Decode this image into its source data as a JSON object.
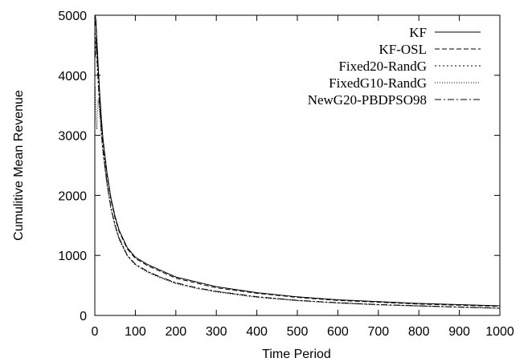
{
  "chart_data": {
    "type": "line",
    "title": "",
    "xlabel": "Time Period",
    "ylabel": "Cumulitive Mean Revenue",
    "xlim": [
      0,
      1000
    ],
    "ylim": [
      0,
      5000
    ],
    "x_ticks": [
      0,
      100,
      200,
      300,
      400,
      500,
      600,
      700,
      800,
      900,
      1000
    ],
    "y_ticks": [
      0,
      1000,
      2000,
      3000,
      4000,
      5000
    ],
    "x_tick_labels": [
      "0",
      "100",
      "200",
      "300",
      "400",
      "500",
      "600",
      "700",
      "800",
      "900",
      "1000"
    ],
    "y_tick_labels": [
      "0",
      "1000",
      "2000",
      "3000",
      "4000",
      "5000"
    ],
    "grid": false,
    "legend_position": "top-right",
    "series": [
      {
        "name": "KF",
        "dash": "solid",
        "x": [
          1,
          3,
          5,
          8,
          12,
          16,
          20,
          30,
          40,
          50,
          60,
          80,
          100,
          130,
          160,
          200,
          250,
          300,
          400,
          500,
          600,
          700,
          800,
          900,
          1000
        ],
        "y": [
          5000,
          4900,
          4600,
          4200,
          3700,
          3300,
          2950,
          2380,
          1950,
          1650,
          1420,
          1130,
          970,
          850,
          760,
          640,
          560,
          480,
          380,
          310,
          260,
          230,
          200,
          180,
          160
        ]
      },
      {
        "name": "KF-OSL",
        "dash": "6,3",
        "x": [
          1,
          3,
          5,
          8,
          12,
          16,
          20,
          30,
          40,
          50,
          60,
          80,
          100,
          130,
          160,
          200,
          250,
          300,
          400,
          500,
          600,
          700,
          800,
          900,
          1000
        ],
        "y": [
          4900,
          4800,
          4550,
          4150,
          3650,
          3250,
          2900,
          2340,
          1920,
          1620,
          1400,
          1110,
          950,
          830,
          740,
          620,
          540,
          460,
          370,
          300,
          250,
          220,
          190,
          170,
          150
        ]
      },
      {
        "name": "Fixed20-RandG",
        "dash": "2,3",
        "x": [
          1,
          3,
          5,
          8,
          12,
          16,
          20,
          30,
          40,
          50,
          60,
          80,
          100,
          130,
          160,
          200,
          250,
          300,
          400,
          500,
          600,
          700,
          800,
          900,
          1000
        ],
        "y": [
          4700,
          4500,
          4250,
          3900,
          3450,
          3050,
          2750,
          2200,
          1780,
          1500,
          1280,
          1000,
          850,
          730,
          640,
          540,
          460,
          400,
          310,
          250,
          210,
          180,
          160,
          140,
          120
        ]
      },
      {
        "name": "FixedG10-RandG",
        "dash": "1,2",
        "x": [
          1,
          3,
          5,
          8,
          12,
          16,
          20,
          30,
          40,
          50,
          60,
          80,
          100,
          130,
          160,
          200,
          250,
          300,
          400,
          500,
          600,
          700,
          800,
          900,
          1000
        ],
        "y": [
          3800,
          3300,
          3100,
          3600,
          3400,
          3000,
          2700,
          2170,
          1760,
          1480,
          1260,
          990,
          840,
          720,
          630,
          530,
          450,
          390,
          300,
          245,
          205,
          175,
          155,
          135,
          118
        ]
      },
      {
        "name": "NewG20-PBDPSO98",
        "dash": "8,3,2,3",
        "x": [
          1,
          3,
          5,
          8,
          12,
          16,
          20,
          30,
          40,
          50,
          60,
          80,
          100,
          130,
          160,
          200,
          250,
          300,
          400,
          500,
          600,
          700,
          800,
          900,
          1000
        ],
        "y": [
          4300,
          4600,
          4350,
          3950,
          3500,
          3080,
          2770,
          2210,
          1790,
          1510,
          1290,
          1005,
          855,
          735,
          645,
          545,
          462,
          402,
          312,
          252,
          212,
          182,
          160,
          140,
          121
        ]
      }
    ]
  }
}
